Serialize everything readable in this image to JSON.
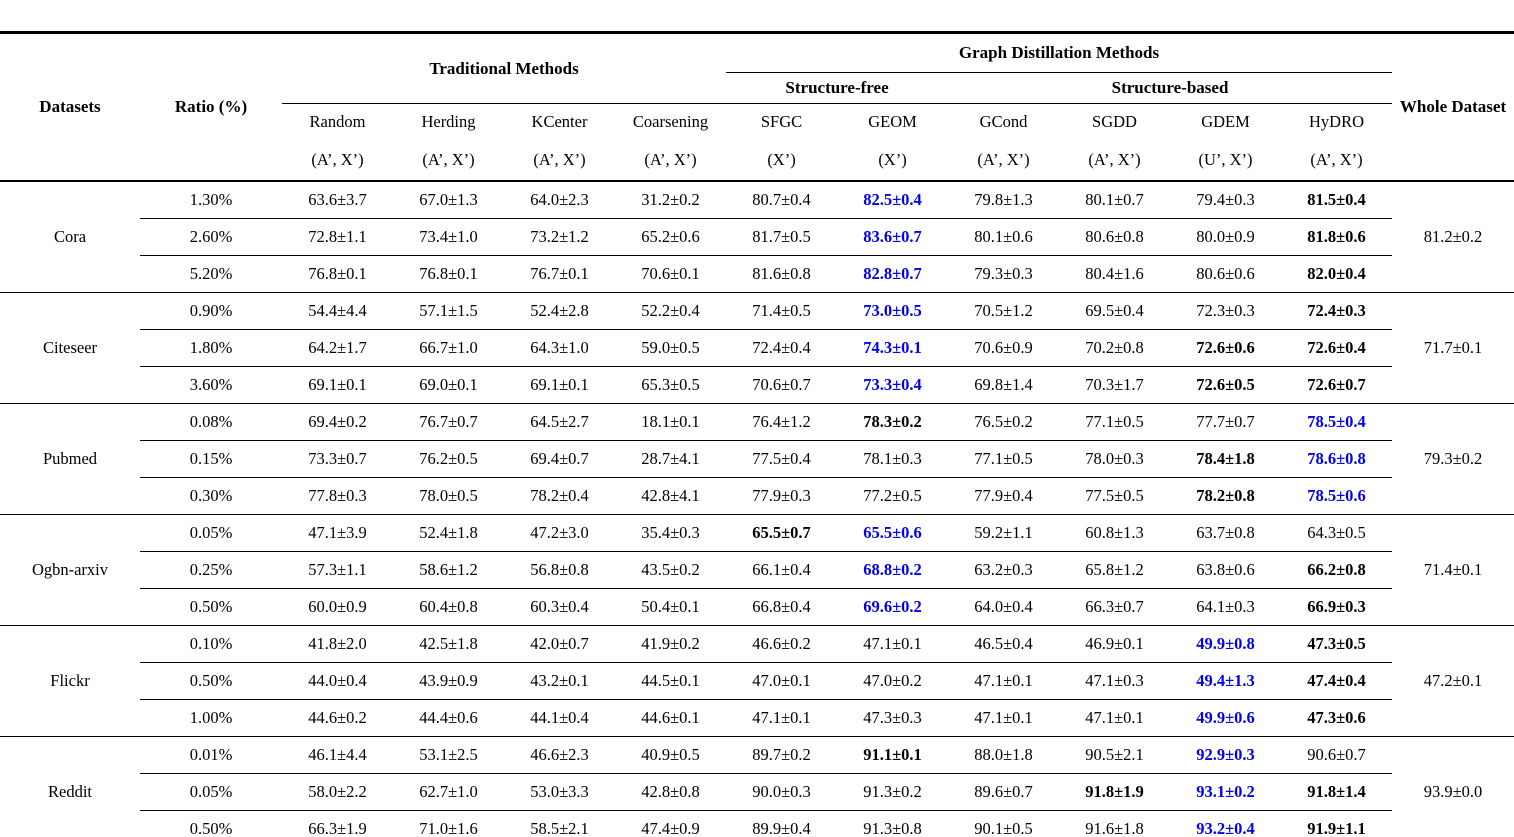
{
  "page": {
    "background": "#ffffff",
    "text_color": "#000000",
    "highlight_blue": "#0000EE"
  },
  "table": {
    "header": {
      "datasets": "Datasets",
      "ratio": "Ratio (%)",
      "traditional_methods": "Traditional Methods",
      "graph_distillation_methods": "Graph Distillation Methods",
      "structure_free": "Structure-free",
      "structure_based": "Structure-based",
      "whole_dataset": "Whole Dataset",
      "methods": [
        {
          "name": "Random",
          "inputs": "(A’, X’)",
          "group": "traditional"
        },
        {
          "name": "Herding",
          "inputs": "(A’, X’)",
          "group": "traditional"
        },
        {
          "name": "KCenter",
          "inputs": "(A’, X’)",
          "group": "traditional"
        },
        {
          "name": "Coarsening",
          "inputs": "(A’, X’)",
          "group": "traditional"
        },
        {
          "name": "SFGC",
          "inputs": "(X’)",
          "group": "structure-free"
        },
        {
          "name": "GEOM",
          "inputs": "(X’)",
          "group": "structure-free"
        },
        {
          "name": "GCond",
          "inputs": "(A’, X’)",
          "group": "structure-based"
        },
        {
          "name": "SGDD",
          "inputs": "(A’, X’)",
          "group": "structure-based"
        },
        {
          "name": "GDEM",
          "inputs": "(U’, X’)",
          "group": "structure-based"
        },
        {
          "name": "HyDRO",
          "inputs": "(A’, X’)",
          "group": "structure-based"
        }
      ]
    },
    "style_codes": {
      "p": "plain",
      "b": "bold-black",
      "bb": "bold-blue"
    },
    "datasets": [
      {
        "name": "Cora",
        "whole": "81.2±0.2",
        "rows": [
          {
            "ratio": "1.30%",
            "values": [
              [
                "63.6±3.7",
                "p"
              ],
              [
                "67.0±1.3",
                "p"
              ],
              [
                "64.0±2.3",
                "p"
              ],
              [
                "31.2±0.2",
                "p"
              ],
              [
                "80.7±0.4",
                "p"
              ],
              [
                "82.5±0.4",
                "bb"
              ],
              [
                "79.8±1.3",
                "p"
              ],
              [
                "80.1±0.7",
                "p"
              ],
              [
                "79.4±0.3",
                "p"
              ],
              [
                "81.5±0.4",
                "b"
              ]
            ]
          },
          {
            "ratio": "2.60%",
            "values": [
              [
                "72.8±1.1",
                "p"
              ],
              [
                "73.4±1.0",
                "p"
              ],
              [
                "73.2±1.2",
                "p"
              ],
              [
                "65.2±0.6",
                "p"
              ],
              [
                "81.7±0.5",
                "p"
              ],
              [
                "83.6±0.7",
                "bb"
              ],
              [
                "80.1±0.6",
                "p"
              ],
              [
                "80.6±0.8",
                "p"
              ],
              [
                "80.0±0.9",
                "p"
              ],
              [
                "81.8±0.6",
                "b"
              ]
            ]
          },
          {
            "ratio": "5.20%",
            "values": [
              [
                "76.8±0.1",
                "p"
              ],
              [
                "76.8±0.1",
                "p"
              ],
              [
                "76.7±0.1",
                "p"
              ],
              [
                "70.6±0.1",
                "p"
              ],
              [
                "81.6±0.8",
                "p"
              ],
              [
                "82.8±0.7",
                "bb"
              ],
              [
                "79.3±0.3",
                "p"
              ],
              [
                "80.4±1.6",
                "p"
              ],
              [
                "80.6±0.6",
                "p"
              ],
              [
                "82.0±0.4",
                "b"
              ]
            ]
          }
        ]
      },
      {
        "name": "Citeseer",
        "whole": "71.7±0.1",
        "rows": [
          {
            "ratio": "0.90%",
            "values": [
              [
                "54.4±4.4",
                "p"
              ],
              [
                "57.1±1.5",
                "p"
              ],
              [
                "52.4±2.8",
                "p"
              ],
              [
                "52.2±0.4",
                "p"
              ],
              [
                "71.4±0.5",
                "p"
              ],
              [
                "73.0±0.5",
                "bb"
              ],
              [
                "70.5±1.2",
                "p"
              ],
              [
                "69.5±0.4",
                "p"
              ],
              [
                "72.3±0.3",
                "p"
              ],
              [
                "72.4±0.3",
                "b"
              ]
            ]
          },
          {
            "ratio": "1.80%",
            "values": [
              [
                "64.2±1.7",
                "p"
              ],
              [
                "66.7±1.0",
                "p"
              ],
              [
                "64.3±1.0",
                "p"
              ],
              [
                "59.0±0.5",
                "p"
              ],
              [
                "72.4±0.4",
                "p"
              ],
              [
                "74.3±0.1",
                "bb"
              ],
              [
                "70.6±0.9",
                "p"
              ],
              [
                "70.2±0.8",
                "p"
              ],
              [
                "72.6±0.6",
                "b"
              ],
              [
                "72.6±0.4",
                "b"
              ]
            ]
          },
          {
            "ratio": "3.60%",
            "values": [
              [
                "69.1±0.1",
                "p"
              ],
              [
                "69.0±0.1",
                "p"
              ],
              [
                "69.1±0.1",
                "p"
              ],
              [
                "65.3±0.5",
                "p"
              ],
              [
                "70.6±0.7",
                "p"
              ],
              [
                "73.3±0.4",
                "bb"
              ],
              [
                "69.8±1.4",
                "p"
              ],
              [
                "70.3±1.7",
                "p"
              ],
              [
                "72.6±0.5",
                "b"
              ],
              [
                "72.6±0.7",
                "b"
              ]
            ]
          }
        ]
      },
      {
        "name": "Pubmed",
        "whole": "79.3±0.2",
        "rows": [
          {
            "ratio": "0.08%",
            "values": [
              [
                "69.4±0.2",
                "p"
              ],
              [
                "76.7±0.7",
                "p"
              ],
              [
                "64.5±2.7",
                "p"
              ],
              [
                "18.1±0.1",
                "p"
              ],
              [
                "76.4±1.2",
                "p"
              ],
              [
                "78.3±0.2",
                "b"
              ],
              [
                "76.5±0.2",
                "p"
              ],
              [
                "77.1±0.5",
                "p"
              ],
              [
                "77.7±0.7",
                "p"
              ],
              [
                "78.5±0.4",
                "bb"
              ]
            ]
          },
          {
            "ratio": "0.15%",
            "values": [
              [
                "73.3±0.7",
                "p"
              ],
              [
                "76.2±0.5",
                "p"
              ],
              [
                "69.4±0.7",
                "p"
              ],
              [
                "28.7±4.1",
                "p"
              ],
              [
                "77.5±0.4",
                "p"
              ],
              [
                "78.1±0.3",
                "p"
              ],
              [
                "77.1±0.5",
                "p"
              ],
              [
                "78.0±0.3",
                "p"
              ],
              [
                "78.4±1.8",
                "b"
              ],
              [
                "78.6±0.8",
                "bb"
              ]
            ]
          },
          {
            "ratio": "0.30%",
            "values": [
              [
                "77.8±0.3",
                "p"
              ],
              [
                "78.0±0.5",
                "p"
              ],
              [
                "78.2±0.4",
                "p"
              ],
              [
                "42.8±4.1",
                "p"
              ],
              [
                "77.9±0.3",
                "p"
              ],
              [
                "77.2±0.5",
                "p"
              ],
              [
                "77.9±0.4",
                "p"
              ],
              [
                "77.5±0.5",
                "p"
              ],
              [
                "78.2±0.8",
                "b"
              ],
              [
                "78.5±0.6",
                "bb"
              ]
            ]
          }
        ]
      },
      {
        "name": "Ogbn-arxiv",
        "whole": "71.4±0.1",
        "rows": [
          {
            "ratio": "0.05%",
            "values": [
              [
                "47.1±3.9",
                "p"
              ],
              [
                "52.4±1.8",
                "p"
              ],
              [
                "47.2±3.0",
                "p"
              ],
              [
                "35.4±0.3",
                "p"
              ],
              [
                "65.5±0.7",
                "b"
              ],
              [
                "65.5±0.6",
                "bb"
              ],
              [
                "59.2±1.1",
                "p"
              ],
              [
                "60.8±1.3",
                "p"
              ],
              [
                "63.7±0.8",
                "p"
              ],
              [
                "64.3±0.5",
                "p"
              ]
            ]
          },
          {
            "ratio": "0.25%",
            "values": [
              [
                "57.3±1.1",
                "p"
              ],
              [
                "58.6±1.2",
                "p"
              ],
              [
                "56.8±0.8",
                "p"
              ],
              [
                "43.5±0.2",
                "p"
              ],
              [
                "66.1±0.4",
                "p"
              ],
              [
                "68.8±0.2",
                "bb"
              ],
              [
                "63.2±0.3",
                "p"
              ],
              [
                "65.8±1.2",
                "p"
              ],
              [
                "63.8±0.6",
                "p"
              ],
              [
                "66.2±0.8",
                "b"
              ]
            ]
          },
          {
            "ratio": "0.50%",
            "values": [
              [
                "60.0±0.9",
                "p"
              ],
              [
                "60.4±0.8",
                "p"
              ],
              [
                "60.3±0.4",
                "p"
              ],
              [
                "50.4±0.1",
                "p"
              ],
              [
                "66.8±0.4",
                "p"
              ],
              [
                "69.6±0.2",
                "bb"
              ],
              [
                "64.0±0.4",
                "p"
              ],
              [
                "66.3±0.7",
                "p"
              ],
              [
                "64.1±0.3",
                "p"
              ],
              [
                "66.9±0.3",
                "b"
              ]
            ]
          }
        ]
      },
      {
        "name": "Flickr",
        "whole": "47.2±0.1",
        "rows": [
          {
            "ratio": "0.10%",
            "values": [
              [
                "41.8±2.0",
                "p"
              ],
              [
                "42.5±1.8",
                "p"
              ],
              [
                "42.0±0.7",
                "p"
              ],
              [
                "41.9±0.2",
                "p"
              ],
              [
                "46.6±0.2",
                "p"
              ],
              [
                "47.1±0.1",
                "p"
              ],
              [
                "46.5±0.4",
                "p"
              ],
              [
                "46.9±0.1",
                "p"
              ],
              [
                "49.9±0.8",
                "bb"
              ],
              [
                "47.3±0.5",
                "b"
              ]
            ]
          },
          {
            "ratio": "0.50%",
            "values": [
              [
                "44.0±0.4",
                "p"
              ],
              [
                "43.9±0.9",
                "p"
              ],
              [
                "43.2±0.1",
                "p"
              ],
              [
                "44.5±0.1",
                "p"
              ],
              [
                "47.0±0.1",
                "p"
              ],
              [
                "47.0±0.2",
                "p"
              ],
              [
                "47.1±0.1",
                "p"
              ],
              [
                "47.1±0.3",
                "p"
              ],
              [
                "49.4±1.3",
                "bb"
              ],
              [
                "47.4±0.4",
                "b"
              ]
            ]
          },
          {
            "ratio": "1.00%",
            "values": [
              [
                "44.6±0.2",
                "p"
              ],
              [
                "44.4±0.6",
                "p"
              ],
              [
                "44.1±0.4",
                "p"
              ],
              [
                "44.6±0.1",
                "p"
              ],
              [
                "47.1±0.1",
                "p"
              ],
              [
                "47.3±0.3",
                "p"
              ],
              [
                "47.1±0.1",
                "p"
              ],
              [
                "47.1±0.1",
                "p"
              ],
              [
                "49.9±0.6",
                "bb"
              ],
              [
                "47.3±0.6",
                "b"
              ]
            ]
          }
        ]
      },
      {
        "name": "Reddit",
        "whole": "93.9±0.0",
        "rows": [
          {
            "ratio": "0.01%",
            "values": [
              [
                "46.1±4.4",
                "p"
              ],
              [
                "53.1±2.5",
                "p"
              ],
              [
                "46.6±2.3",
                "p"
              ],
              [
                "40.9±0.5",
                "p"
              ],
              [
                "89.7±0.2",
                "p"
              ],
              [
                "91.1±0.1",
                "b"
              ],
              [
                "88.0±1.8",
                "p"
              ],
              [
                "90.5±2.1",
                "p"
              ],
              [
                "92.9±0.3",
                "bb"
              ],
              [
                "90.6±0.7",
                "p"
              ]
            ]
          },
          {
            "ratio": "0.05%",
            "values": [
              [
                "58.0±2.2",
                "p"
              ],
              [
                "62.7±1.0",
                "p"
              ],
              [
                "53.0±3.3",
                "p"
              ],
              [
                "42.8±0.8",
                "p"
              ],
              [
                "90.0±0.3",
                "p"
              ],
              [
                "91.3±0.2",
                "p"
              ],
              [
                "89.6±0.7",
                "p"
              ],
              [
                "91.8±1.9",
                "b"
              ],
              [
                "93.1±0.2",
                "bb"
              ],
              [
                "91.8±1.4",
                "b"
              ]
            ]
          },
          {
            "ratio": "0.50%",
            "values": [
              [
                "66.3±1.9",
                "p"
              ],
              [
                "71.0±1.6",
                "p"
              ],
              [
                "58.5±2.1",
                "p"
              ],
              [
                "47.4±0.9",
                "p"
              ],
              [
                "89.9±0.4",
                "p"
              ],
              [
                "91.3±0.8",
                "p"
              ],
              [
                "90.1±0.5",
                "p"
              ],
              [
                "91.6±1.8",
                "p"
              ],
              [
                "93.2±0.4",
                "bb"
              ],
              [
                "91.9±1.1",
                "b"
              ]
            ]
          }
        ]
      }
    ]
  }
}
